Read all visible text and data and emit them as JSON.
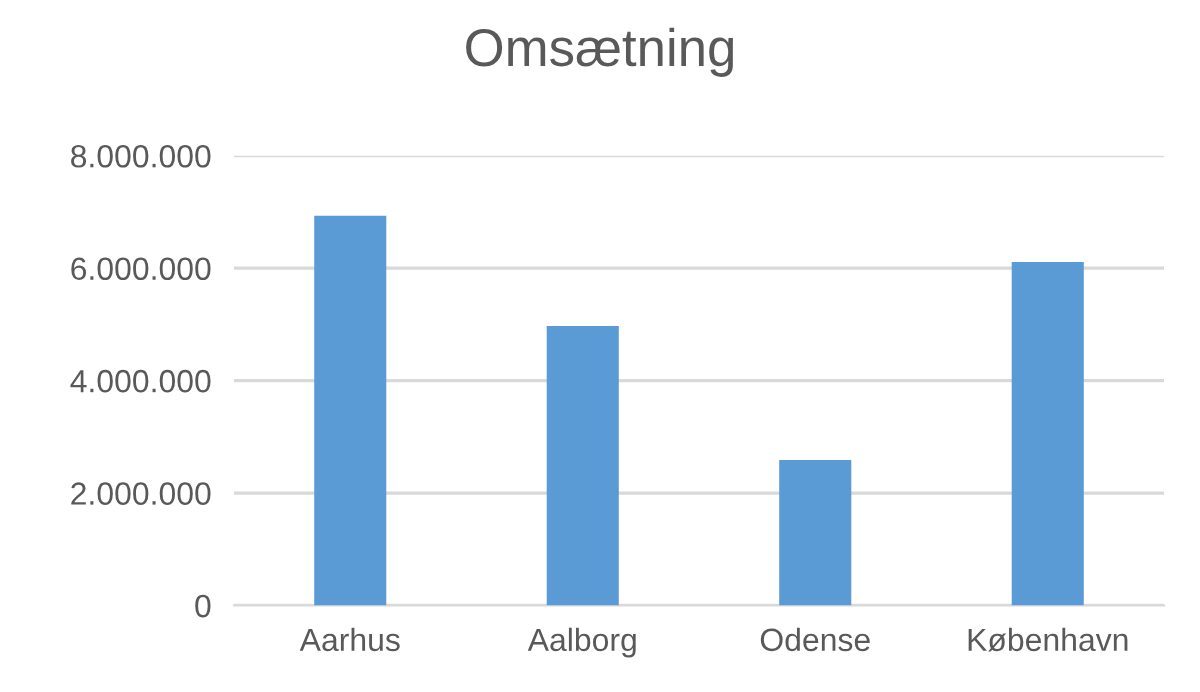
{
  "chart_data": {
    "type": "bar",
    "title": "Omsætning",
    "categories": [
      "Aarhus",
      "Aalborg",
      "Odense",
      "København"
    ],
    "values": [
      6930000,
      4970000,
      2590000,
      6110000
    ],
    "color": "#5b9bd5",
    "ylim": [
      0,
      8000000
    ],
    "yticks": [
      {
        "value": 0,
        "label": "0"
      },
      {
        "value": 2000000,
        "label": "2.000.000"
      },
      {
        "value": 4000000,
        "label": "4.000.000"
      },
      {
        "value": 6000000,
        "label": "6.000.000"
      },
      {
        "value": 8000000,
        "label": "8.000.000"
      }
    ],
    "grid": "y",
    "legend": false
  }
}
